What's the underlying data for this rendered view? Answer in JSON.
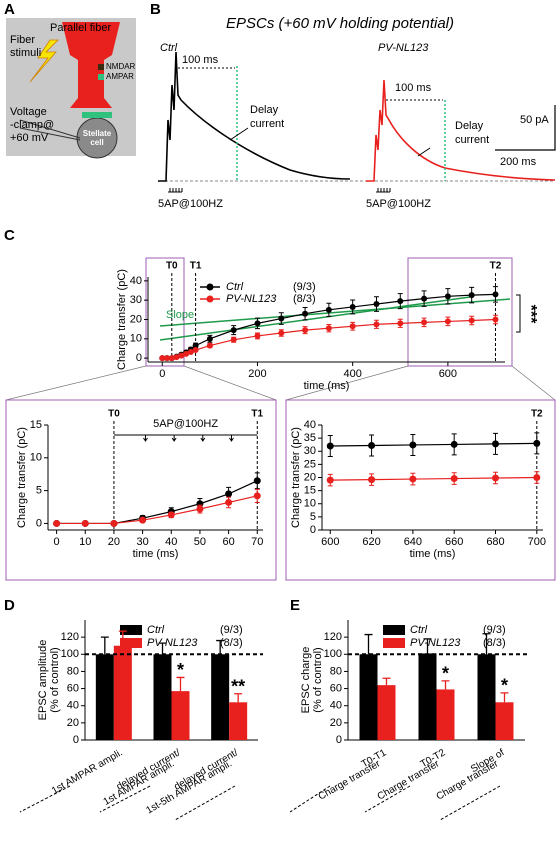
{
  "panel_a": {
    "label": "A",
    "parallel_fiber": "Parallel fiber",
    "fiber_stimuli": [
      "Fiber",
      "stimuli"
    ],
    "nmdar": "NMDAR",
    "ampar": "AMPAR",
    "voltage_clamp": [
      "Voltage",
      "-clamp@",
      "+60 mV"
    ],
    "cell": [
      "Stellate",
      "cell"
    ]
  },
  "panel_b": {
    "label": "B",
    "title": "EPSCs (+60 mV holding potential)",
    "ctrl": "Ctrl",
    "pv": "PV-NL123",
    "interval": "100 ms",
    "delay_current": [
      "Delay",
      "current"
    ],
    "scale_y": "50 pA",
    "scale_x": "200 ms",
    "stim": "5AP@100HZ"
  },
  "chart_data": [
    {
      "type": "line",
      "panel": "C",
      "xlabel": "time (ms)",
      "ylabel": "Charge transfer (pC)",
      "x": [
        0,
        10,
        20,
        30,
        40,
        50,
        60,
        70,
        100,
        150,
        200,
        250,
        300,
        350,
        400,
        450,
        500,
        550,
        600,
        650,
        700
      ],
      "series": [
        {
          "name": "Ctrl",
          "count": "(9/3)",
          "color": "#000000",
          "values": [
            0,
            0,
            0,
            0.8,
            1.8,
            3,
            4.5,
            6.5,
            10,
            14.5,
            18,
            20.5,
            23,
            25,
            26.5,
            28,
            29.5,
            30.8,
            32,
            32.6,
            33
          ],
          "errors": [
            0.3,
            0.3,
            0.3,
            0.5,
            0.7,
            0.9,
            1.1,
            1.3,
            1.8,
            2.3,
            2.7,
            3,
            3.2,
            3.4,
            3.6,
            3.8,
            3.9,
            4,
            4,
            4,
            4
          ]
        },
        {
          "name": "PV-NL123",
          "count": "(8/3)",
          "color": "#e8211f",
          "values": [
            0,
            0,
            0,
            0.5,
            1.3,
            2.2,
            3.2,
            4.2,
            6.5,
            9.5,
            11.5,
            13,
            14.5,
            15.5,
            16.5,
            17.5,
            18,
            18.5,
            19,
            19.5,
            20
          ],
          "errors": [
            0.2,
            0.2,
            0.2,
            0.3,
            0.4,
            0.5,
            0.6,
            0.7,
            1,
            1.3,
            1.5,
            1.7,
            1.8,
            1.9,
            2,
            2.1,
            2.1,
            2.2,
            2.2,
            2.2,
            2.2
          ]
        }
      ],
      "xlim": [
        -30,
        720
      ],
      "ylim": [
        -2,
        42
      ],
      "xticks": [
        0,
        200,
        400,
        600
      ],
      "yticks": [
        0,
        10,
        20,
        30,
        40
      ],
      "markers": [
        {
          "label": "T0",
          "x": 20
        },
        {
          "label": "T1",
          "x": 70
        },
        {
          "label": "T2",
          "x": 700
        }
      ],
      "annotations": [
        "Slope",
        "***"
      ]
    },
    {
      "type": "line",
      "xlabel": "time (ms)",
      "ylabel": "Charge transfer (pC)",
      "x": [
        0,
        10,
        20,
        30,
        40,
        50,
        60,
        70
      ],
      "series": [
        {
          "name": "Ctrl",
          "color": "#000000",
          "values": [
            0,
            0,
            0,
            0.8,
            1.8,
            3,
            4.5,
            6.5
          ],
          "errors": [
            0.2,
            0.2,
            0.2,
            0.4,
            0.6,
            0.8,
            1,
            1.2
          ]
        },
        {
          "name": "PV-NL123",
          "color": "#e8211f",
          "values": [
            0,
            0,
            0,
            0.5,
            1.3,
            2.2,
            3.2,
            4.2
          ],
          "errors": [
            0.2,
            0.2,
            0.2,
            0.3,
            0.4,
            0.6,
            0.8,
            1
          ]
        }
      ],
      "xlim": [
        -3,
        72
      ],
      "ylim": [
        -1,
        15
      ],
      "xticks": [
        0,
        10,
        20,
        30,
        40,
        50,
        60,
        70
      ],
      "yticks": [
        0,
        5,
        10,
        15
      ],
      "markers": [
        {
          "label": "T0",
          "x": 20
        },
        {
          "label": "T1",
          "x": 70
        }
      ],
      "stim_label": "5AP@100HZ",
      "stimuli": [
        31,
        41,
        51,
        61
      ]
    },
    {
      "type": "line",
      "xlabel": "time (ms)",
      "ylabel": "Charge transfer (pC)",
      "x": [
        600,
        620,
        640,
        660,
        680,
        700
      ],
      "series": [
        {
          "name": "Ctrl",
          "color": "#000000",
          "values": [
            32,
            32.2,
            32.4,
            32.6,
            32.8,
            33
          ],
          "errors": [
            4,
            4,
            4,
            4,
            4,
            4
          ]
        },
        {
          "name": "PV-NL123",
          "color": "#e8211f",
          "values": [
            19,
            19.2,
            19.4,
            19.6,
            19.8,
            20
          ],
          "errors": [
            2.2,
            2.2,
            2.2,
            2.2,
            2.2,
            2.2
          ]
        }
      ],
      "xlim": [
        596,
        703
      ],
      "ylim": [
        0,
        40
      ],
      "xticks": [
        600,
        620,
        640,
        660,
        680,
        700
      ],
      "yticks": [
        0,
        5,
        10,
        15,
        20,
        25,
        30,
        35,
        40
      ],
      "markers": [
        {
          "label": "T2",
          "x": 700
        }
      ]
    },
    {
      "type": "bar",
      "panel": "D",
      "ylabel": [
        "EPSC amplitude",
        "(% of control)"
      ],
      "categories": [
        [
          "1st AMPAR ampli."
        ],
        [
          "delayed current/",
          "1st AMPAR ampli."
        ],
        [
          "delayed current/",
          "1st-5th AMPAR ampli."
        ]
      ],
      "series": [
        {
          "name": "Ctrl",
          "count": "(9/3)",
          "color": "#000000",
          "values": [
            100,
            100,
            100
          ],
          "errors": [
            20,
            13,
            16
          ]
        },
        {
          "name": "PV-NL123",
          "count": "(8/3)",
          "color": "#e8211f",
          "values": [
            110,
            57,
            44
          ],
          "errors": [
            17,
            16,
            10
          ]
        }
      ],
      "ylim": [
        0,
        140
      ],
      "yticks": [
        0,
        20,
        40,
        60,
        80,
        100,
        120
      ],
      "reference_line": 100,
      "annotations": [
        {
          "text": "*",
          "category": 1
        },
        {
          "text": "**",
          "category": 2
        }
      ]
    },
    {
      "type": "bar",
      "panel": "E",
      "ylabel": [
        "EPSC charge",
        "(% of control)"
      ],
      "categories": [
        [
          "T0-T1",
          "Charge transfer"
        ],
        [
          "T0-T2",
          "Charge transfer"
        ],
        [
          "Slope of",
          "Charge transfer"
        ]
      ],
      "series": [
        {
          "name": "Ctrl",
          "count": "(9/3)",
          "color": "#000000",
          "values": [
            100,
            101,
            100
          ],
          "errors": [
            23,
            17,
            24
          ]
        },
        {
          "name": "PV-NL123",
          "count": "(8/3)",
          "color": "#e8211f",
          "values": [
            64,
            59,
            44
          ],
          "errors": [
            8,
            10,
            11
          ]
        }
      ],
      "ylim": [
        0,
        140
      ],
      "yticks": [
        0,
        20,
        40,
        60,
        80,
        100,
        120
      ],
      "reference_line": 100,
      "annotations": [
        {
          "text": "*",
          "category": 1
        },
        {
          "text": "*",
          "category": 2
        }
      ]
    }
  ]
}
